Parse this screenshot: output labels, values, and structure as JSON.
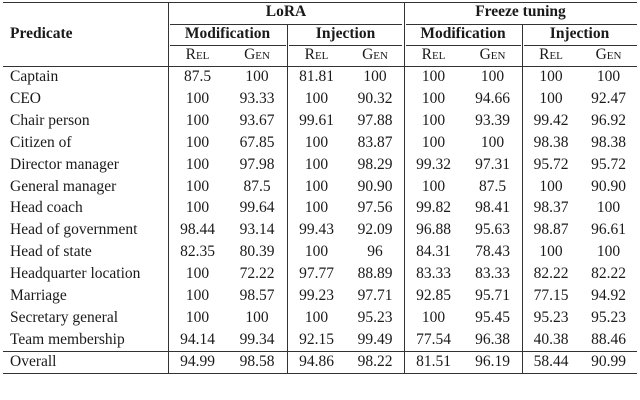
{
  "header": {
    "predicate": "Predicate",
    "groups": [
      {
        "label": "LoRA",
        "sub": [
          "Modification",
          "Injection"
        ]
      },
      {
        "label": "Freeze tuning",
        "sub": [
          "Modification",
          "Injection"
        ]
      }
    ],
    "metrics": [
      "Rel",
      "Gen"
    ]
  },
  "rows": [
    {
      "name": "Captain",
      "values": [
        "87.5",
        "100",
        "81.81",
        "100",
        "100",
        "100",
        "100",
        "100"
      ]
    },
    {
      "name": "CEO",
      "values": [
        "100",
        "93.33",
        "100",
        "90.32",
        "100",
        "94.66",
        "100",
        "92.47"
      ]
    },
    {
      "name": "Chair person",
      "values": [
        "100",
        "93.67",
        "99.61",
        "97.88",
        "100",
        "93.39",
        "99.42",
        "96.92"
      ]
    },
    {
      "name": "Citizen of",
      "values": [
        "100",
        "67.85",
        "100",
        "83.87",
        "100",
        "100",
        "98.38",
        "98.38"
      ]
    },
    {
      "name": "Director manager",
      "values": [
        "100",
        "97.98",
        "100",
        "98.29",
        "99.32",
        "97.31",
        "95.72",
        "95.72"
      ]
    },
    {
      "name": "General manager",
      "values": [
        "100",
        "87.5",
        "100",
        "90.90",
        "100",
        "87.5",
        "100",
        "90.90"
      ]
    },
    {
      "name": "Head coach",
      "values": [
        "100",
        "99.64",
        "100",
        "97.56",
        "99.82",
        "98.41",
        "98.37",
        "100"
      ]
    },
    {
      "name": "Head of government",
      "values": [
        "98.44",
        "93.14",
        "99.43",
        "92.09",
        "96.88",
        "95.63",
        "98.87",
        "96.61"
      ]
    },
    {
      "name": "Head of state",
      "values": [
        "82.35",
        "80.39",
        "100",
        "96",
        "84.31",
        "78.43",
        "100",
        "100"
      ]
    },
    {
      "name": "Headquarter location",
      "values": [
        "100",
        "72.22",
        "97.77",
        "88.89",
        "83.33",
        "83.33",
        "82.22",
        "82.22"
      ]
    },
    {
      "name": "Marriage",
      "values": [
        "100",
        "98.57",
        "99.23",
        "97.71",
        "92.85",
        "95.71",
        "77.15",
        "94.92"
      ]
    },
    {
      "name": "Secretary general",
      "values": [
        "100",
        "100",
        "100",
        "95.23",
        "100",
        "95.45",
        "95.23",
        "95.23"
      ]
    },
    {
      "name": "Team membership",
      "values": [
        "94.14",
        "99.34",
        "92.15",
        "99.49",
        "77.54",
        "96.38",
        "40.38",
        "88.46"
      ]
    }
  ],
  "overall": {
    "name": "Overall",
    "values": [
      "94.99",
      "98.58",
      "94.86",
      "98.22",
      "81.51",
      "96.19",
      "58.44",
      "90.99"
    ]
  }
}
